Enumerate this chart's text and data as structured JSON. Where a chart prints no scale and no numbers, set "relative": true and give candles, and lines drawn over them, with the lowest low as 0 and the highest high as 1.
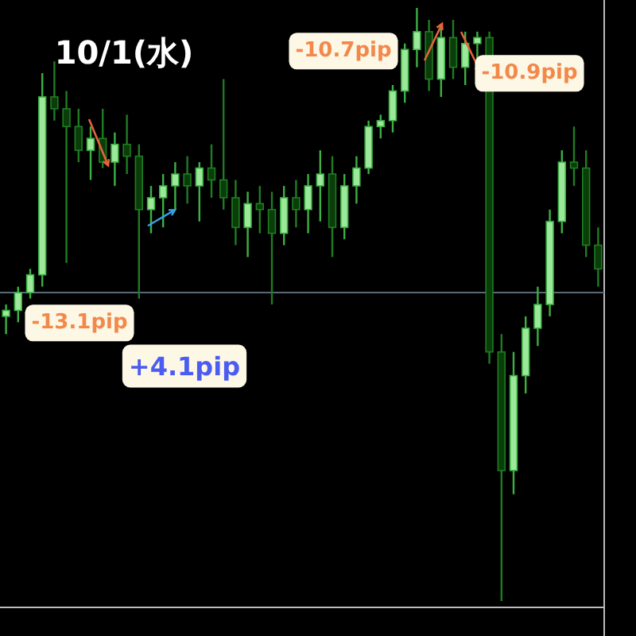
{
  "chart_data": {
    "type": "candlestick",
    "title": "10/1(水)",
    "relative": true,
    "categories": [
      null,
      null,
      null,
      null,
      null,
      null,
      null,
      null,
      null,
      null,
      null,
      null,
      null,
      null,
      null,
      null,
      null,
      null,
      null,
      null,
      null,
      null,
      null,
      null,
      null,
      null,
      null,
      null,
      null,
      null,
      null,
      null,
      null,
      null,
      null,
      null,
      null,
      null,
      null,
      null,
      null,
      null,
      null,
      null,
      null,
      null,
      null,
      null,
      null,
      null
    ],
    "ohlc": [
      [
        0.48,
        0.5,
        0.45,
        0.49
      ],
      [
        0.49,
        0.53,
        0.47,
        0.52
      ],
      [
        0.52,
        0.56,
        0.51,
        0.55
      ],
      [
        0.55,
        0.89,
        0.53,
        0.85
      ],
      [
        0.85,
        0.91,
        0.81,
        0.83
      ],
      [
        0.83,
        0.86,
        0.57,
        0.8
      ],
      [
        0.8,
        0.83,
        0.74,
        0.76
      ],
      [
        0.76,
        0.8,
        0.71,
        0.78
      ],
      [
        0.78,
        0.83,
        0.73,
        0.74
      ],
      [
        0.74,
        0.79,
        0.7,
        0.77
      ],
      [
        0.77,
        0.82,
        0.72,
        0.75
      ],
      [
        0.75,
        0.77,
        0.51,
        0.66
      ],
      [
        0.66,
        0.7,
        0.62,
        0.68
      ],
      [
        0.68,
        0.72,
        0.63,
        0.7
      ],
      [
        0.7,
        0.74,
        0.66,
        0.72
      ],
      [
        0.72,
        0.75,
        0.67,
        0.7
      ],
      [
        0.7,
        0.74,
        0.64,
        0.73
      ],
      [
        0.73,
        0.77,
        0.68,
        0.71
      ],
      [
        0.71,
        0.88,
        0.66,
        0.68
      ],
      [
        0.68,
        0.71,
        0.6,
        0.63
      ],
      [
        0.63,
        0.69,
        0.58,
        0.67
      ],
      [
        0.67,
        0.7,
        0.62,
        0.66
      ],
      [
        0.66,
        0.69,
        0.5,
        0.62
      ],
      [
        0.62,
        0.7,
        0.6,
        0.68
      ],
      [
        0.68,
        0.71,
        0.63,
        0.66
      ],
      [
        0.66,
        0.72,
        0.62,
        0.7
      ],
      [
        0.7,
        0.76,
        0.64,
        0.72
      ],
      [
        0.72,
        0.75,
        0.58,
        0.63
      ],
      [
        0.63,
        0.72,
        0.61,
        0.7
      ],
      [
        0.7,
        0.75,
        0.67,
        0.73
      ],
      [
        0.73,
        0.81,
        0.72,
        0.8
      ],
      [
        0.8,
        0.82,
        0.78,
        0.81
      ],
      [
        0.81,
        0.87,
        0.79,
        0.86
      ],
      [
        0.86,
        0.94,
        0.84,
        0.93
      ],
      [
        0.93,
        1.0,
        0.9,
        0.96
      ],
      [
        0.96,
        0.98,
        0.86,
        0.88
      ],
      [
        0.88,
        0.97,
        0.85,
        0.95
      ],
      [
        0.95,
        0.98,
        0.88,
        0.9
      ],
      [
        0.9,
        0.96,
        0.87,
        0.94
      ],
      [
        0.94,
        0.96,
        0.91,
        0.95
      ],
      [
        0.95,
        0.96,
        0.4,
        0.42
      ],
      [
        0.42,
        0.45,
        0.0,
        0.22
      ],
      [
        0.22,
        0.42,
        0.18,
        0.38
      ],
      [
        0.38,
        0.48,
        0.35,
        0.46
      ],
      [
        0.46,
        0.53,
        0.43,
        0.5
      ],
      [
        0.5,
        0.66,
        0.48,
        0.64
      ],
      [
        0.64,
        0.76,
        0.62,
        0.74
      ],
      [
        0.74,
        0.8,
        0.7,
        0.73
      ],
      [
        0.73,
        0.76,
        0.58,
        0.6
      ],
      [
        0.6,
        0.63,
        0.53,
        0.56
      ]
    ],
    "ref_lines": [
      {
        "axis": "y",
        "value": 0.52,
        "color": "#5a6878"
      }
    ],
    "annotations": [
      "-13.1pip",
      "+4.1pip",
      "-10.7pip",
      "-10.9pip"
    ]
  }
}
